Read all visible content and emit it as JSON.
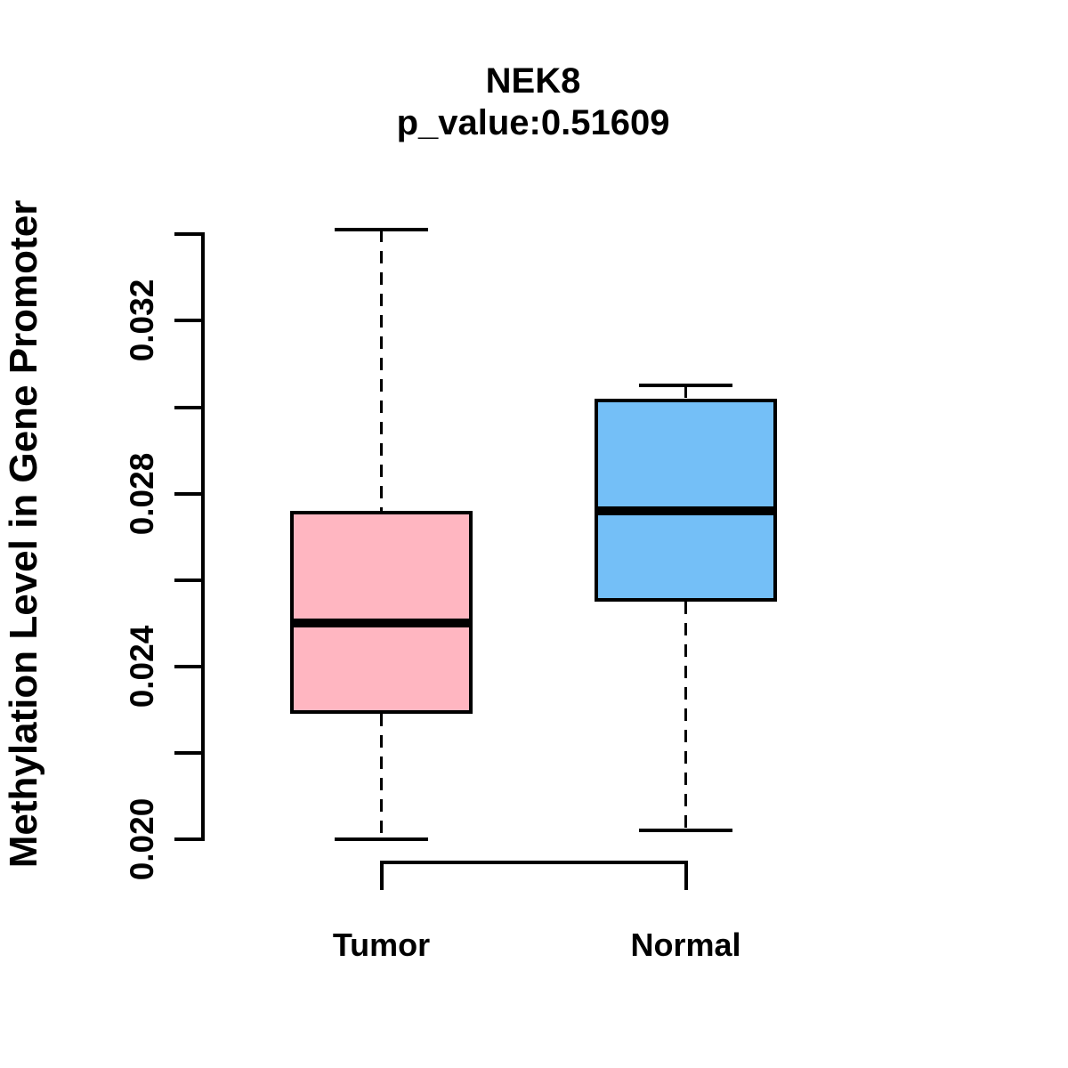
{
  "title": "NEK8",
  "subtitle": "p_value:0.51609",
  "colors": {
    "tumor_fill": "#FFB6C1",
    "normal_fill": "#74BFF7",
    "line": "#000000",
    "background": "#FFFFFF"
  },
  "chart_data": {
    "type": "boxplot",
    "title": "NEK8",
    "subtitle": "p_value:0.51609",
    "xlabel": "",
    "ylabel": "Methylation Level in Gene Promoter",
    "categories": [
      "Tumor",
      "Normal"
    ],
    "ylim": [
      0.0195,
      0.0345
    ],
    "grid": false,
    "legend": false,
    "y_ticks": {
      "min": 0.02,
      "max": 0.034,
      "step": 0.002,
      "labeled": [
        0.02,
        0.024,
        0.028,
        0.032
      ],
      "label_format_decimals": 3
    },
    "series": [
      {
        "name": "Tumor",
        "fill": "#FFB6C1",
        "whisker_low": 0.02,
        "q1": 0.0229,
        "median": 0.025,
        "q3": 0.0276,
        "whisker_high": 0.0341
      },
      {
        "name": "Normal",
        "fill": "#74BFF7",
        "whisker_low": 0.0202,
        "q1": 0.0255,
        "median": 0.0276,
        "q3": 0.0302,
        "whisker_high": 0.0305
      }
    ]
  }
}
